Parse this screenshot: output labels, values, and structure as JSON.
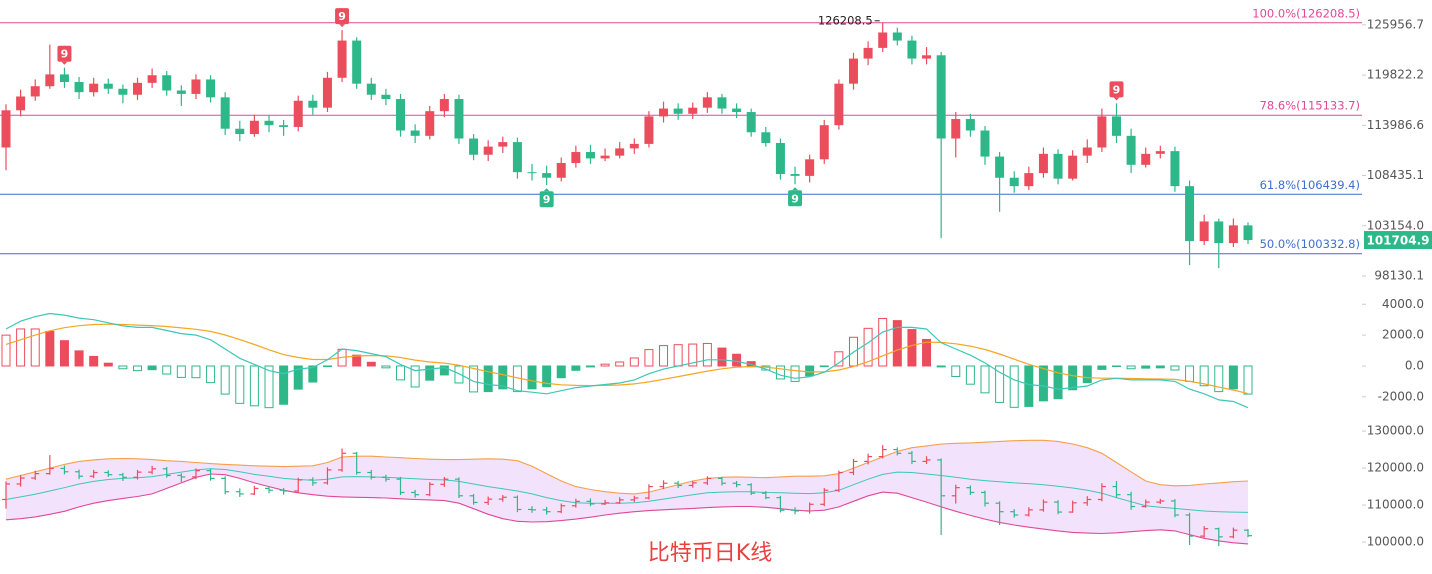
{
  "chart_data": [
    {
      "type": "candlestick",
      "log_scale": true,
      "up_color": "#eb4d5c",
      "down_color": "#2eb88a",
      "ylim": [
        96300,
        129100
      ],
      "yticks": [
        125956.7,
        119822.2,
        113986.6,
        108435.1,
        {
          "value": 103154,
          "label": "103154.0"
        },
        98130.1
      ],
      "open": [
        111500,
        115700,
        117300,
        118500,
        119900,
        119000,
        117800,
        118800,
        118200,
        117500,
        118900,
        119800,
        118000,
        117600,
        119300,
        117200,
        113600,
        113000,
        114500,
        114000,
        113800,
        116800,
        116000,
        119500,
        124000,
        118800,
        117500,
        117000,
        113400,
        112800,
        115600,
        117000,
        112500,
        110700,
        111600,
        112100,
        108800,
        108700,
        108200,
        109800,
        111000,
        110300,
        110600,
        111400,
        111900,
        115000,
        115900,
        115300,
        116000,
        117200,
        115900,
        115500,
        113200,
        112000,
        108600,
        108400,
        110200,
        114000,
        118800,
        121800,
        123100,
        125000,
        124000,
        121800,
        122200,
        112500,
        114700,
        113400,
        110500,
        108200,
        107300,
        108700,
        110800,
        108100,
        110600,
        111500,
        115000,
        112800,
        109600,
        110800,
        111100,
        107300,
        101600,
        103600,
        101400,
        103200
      ],
      "high": [
        116400,
        118100,
        119300,
        123500,
        120700,
        119600,
        119500,
        119400,
        118700,
        119500,
        120600,
        120300,
        118600,
        119900,
        119800,
        117800,
        114500,
        115200,
        115100,
        114600,
        117400,
        117500,
        120200,
        125300,
        124400,
        119500,
        118200,
        117600,
        114100,
        116200,
        117600,
        117500,
        113000,
        112300,
        112700,
        112600,
        109700,
        109500,
        110400,
        111700,
        111800,
        111400,
        112100,
        112500,
        115600,
        116700,
        116500,
        116600,
        117800,
        117600,
        116500,
        115900,
        113800,
        112500,
        109400,
        110700,
        114600,
        119300,
        122500,
        123900,
        126208.5,
        125600,
        124600,
        123200,
        122600,
        115500,
        115300,
        113900,
        111000,
        108900,
        109400,
        111500,
        111300,
        111200,
        112400,
        115900,
        116500,
        113600,
        111500,
        111700,
        111600,
        107900,
        104300,
        103900,
        103900,
        103500
      ],
      "low": [
        109000,
        115000,
        116800,
        118200,
        118300,
        117000,
        117300,
        117600,
        116500,
        116900,
        118300,
        117400,
        116200,
        117000,
        116600,
        112900,
        112200,
        112700,
        113200,
        112800,
        113300,
        115200,
        115500,
        119000,
        118200,
        116900,
        116300,
        112700,
        112000,
        112400,
        114900,
        111900,
        110100,
        110000,
        110900,
        108100,
        107900,
        107400,
        107800,
        109300,
        109700,
        110000,
        110300,
        110800,
        111500,
        114300,
        114600,
        114700,
        115400,
        115300,
        114800,
        112700,
        111600,
        108000,
        107500,
        107700,
        109700,
        113500,
        118100,
        121000,
        122600,
        123400,
        121100,
        121100,
        101900,
        110400,
        112700,
        109600,
        104600,
        106600,
        106900,
        108200,
        107500,
        107900,
        109800,
        111000,
        112000,
        108700,
        109300,
        110300,
        106700,
        99200,
        101200,
        98900,
        101000,
        101300
      ],
      "close": [
        115700,
        117300,
        118500,
        119900,
        119000,
        117800,
        118800,
        118200,
        117500,
        118900,
        119800,
        118000,
        117600,
        119300,
        117200,
        113600,
        113000,
        114500,
        114000,
        113800,
        116800,
        116000,
        119500,
        124000,
        118800,
        117500,
        117000,
        113400,
        112800,
        115600,
        117000,
        112500,
        110700,
        111600,
        112100,
        108800,
        108700,
        108200,
        109800,
        111000,
        110300,
        110600,
        111400,
        111900,
        115000,
        115900,
        115300,
        116000,
        117200,
        115900,
        115500,
        113200,
        112000,
        108600,
        108400,
        110200,
        114000,
        118800,
        121800,
        123100,
        125000,
        124000,
        121800,
        122200,
        112500,
        114700,
        113400,
        110500,
        108200,
        107300,
        108700,
        110800,
        108100,
        110600,
        111500,
        115000,
        112800,
        109600,
        110800,
        111100,
        107300,
        101600,
        103600,
        101400,
        103200,
        101704.9
      ],
      "fib_levels": [
        {
          "label": "100.0%(126208.5)",
          "value": 126208.5,
          "color": "#e0489a"
        },
        {
          "label": "78.6%(115133.7)",
          "value": 115133.7,
          "color": "#e0489a"
        },
        {
          "label": "61.8%(106439.4)",
          "value": 106439.4,
          "color": "#3f6fd0"
        },
        {
          "label": "50.0%(100332.8)",
          "value": 100332.8,
          "color": "#3f6fd0"
        }
      ],
      "last_price": 101704.9,
      "high_annotation": 126208.5,
      "td_marks": [
        {
          "index": 4,
          "text": "9",
          "side": "top"
        },
        {
          "index": 23,
          "text": "9",
          "side": "top"
        },
        {
          "index": 76,
          "text": "9",
          "side": "top"
        },
        {
          "index": 37,
          "text": "9",
          "side": "bottom"
        },
        {
          "index": 54,
          "text": "9",
          "side": "bottom"
        }
      ]
    },
    {
      "type": "macd",
      "ylim": [
        -3500,
        4600
      ],
      "up_color": "#eb4d5c",
      "down_color": "#2eb88a",
      "dif_color": "#3cc7b8",
      "dea_color": "#f5a623",
      "yticks": [
        {
          "value": 4000,
          "label": "4000.0"
        },
        {
          "value": 2000,
          "label": "2000.0"
        },
        {
          "value": 0,
          "label": "0.0"
        },
        {
          "value": -2000,
          "label": "-2000.0"
        }
      ],
      "dif": [
        2400,
        2900,
        3200,
        3400,
        3300,
        3100,
        3000,
        2800,
        2600,
        2500,
        2500,
        2300,
        2100,
        2000,
        1700,
        1100,
        500,
        100,
        -300,
        -500,
        -200,
        -100,
        400,
        1100,
        1000,
        800,
        600,
        100,
        -300,
        -200,
        -100,
        -500,
        -1000,
        -1200,
        -1300,
        -1600,
        -1700,
        -1800,
        -1600,
        -1400,
        -1300,
        -1200,
        -1100,
        -900,
        -500,
        -200,
        0,
        200,
        400,
        400,
        300,
        100,
        -200,
        -600,
        -800,
        -700,
        -400,
        200,
        900,
        1500,
        2200,
        2500,
        2500,
        2400,
        1500,
        1100,
        700,
        200,
        -400,
        -900,
        -1200,
        -1300,
        -1500,
        -1400,
        -1300,
        -900,
        -800,
        -900,
        -900,
        -900,
        -1000,
        -1500,
        -1800,
        -2200,
        -2300,
        -2700
      ],
      "dea": [
        1400,
        1700,
        2000,
        2280,
        2480,
        2610,
        2690,
        2710,
        2690,
        2650,
        2620,
        2560,
        2470,
        2380,
        2240,
        2010,
        1710,
        1390,
        1050,
        740,
        550,
        420,
        420,
        560,
        650,
        680,
        660,
        550,
        380,
        260,
        190,
        50,
        -160,
        -370,
        -560,
        -770,
        -960,
        -1130,
        -1220,
        -1260,
        -1270,
        -1260,
        -1230,
        -1160,
        -1030,
        -860,
        -690,
        -510,
        -330,
        -180,
        -80,
        -40,
        -70,
        -180,
        -300,
        -380,
        -380,
        -260,
        -30,
        280,
        660,
        1030,
        1320,
        1540,
        1530,
        1440,
        1290,
        1070,
        780,
        440,
        110,
        -170,
        -440,
        -630,
        -760,
        -790,
        -790,
        -810,
        -830,
        -840,
        -870,
        -1000,
        -1160,
        -1370,
        -1560,
        -1790
      ],
      "hist": [
        2000,
        2400,
        2400,
        2240,
        1640,
        980,
        620,
        180,
        -180,
        -300,
        -240,
        -520,
        -740,
        -760,
        -1080,
        -1820,
        -2420,
        -2580,
        -2700,
        -2480,
        -1500,
        -1040,
        -40,
        1080,
        700,
        240,
        -120,
        -900,
        -1360,
        -920,
        -580,
        -1100,
        -1680,
        -1660,
        -1480,
        -1660,
        -1480,
        -1340,
        -760,
        -280,
        -60,
        120,
        260,
        520,
        1060,
        1320,
        1380,
        1420,
        1460,
        1160,
        760,
        280,
        -260,
        -840,
        -1000,
        -640,
        -40,
        920,
        1860,
        2440,
        3080,
        2940,
        2360,
        1720,
        -60,
        -680,
        -1180,
        -1740,
        -2360,
        -2680,
        -2620,
        -2260,
        -2120,
        -1540,
        -1080,
        -220,
        -20,
        -180,
        -140,
        -120,
        -260,
        -1000,
        -1280,
        -1660,
        -1480,
        -1820
      ]
    },
    {
      "type": "bollinger",
      "ylim": [
        95000,
        133000
      ],
      "upper_color": "#f5a04a",
      "mid_color": "#3cc7b8",
      "lower_color": "#e0489a",
      "fill_color": "#f3e2fb",
      "yticks": [
        {
          "value": 130000,
          "label": "130000.0"
        },
        {
          "value": 120000,
          "label": "120000.0"
        },
        {
          "value": 110000,
          "label": "110000.0"
        },
        {
          "value": 100000,
          "label": "100000.0"
        }
      ],
      "upper": [
        117000,
        118000,
        119000,
        120000,
        121000,
        121800,
        122200,
        122500,
        122600,
        122500,
        122300,
        122000,
        121800,
        121500,
        121200,
        121000,
        120800,
        120600,
        120500,
        120400,
        120500,
        120600,
        121500,
        123000,
        123200,
        123200,
        123000,
        122800,
        122600,
        122400,
        122300,
        122300,
        122400,
        122500,
        122400,
        122000,
        120500,
        118500,
        116500,
        115000,
        114200,
        113600,
        113200,
        113000,
        113500,
        114500,
        115500,
        116500,
        117200,
        117500,
        117600,
        117500,
        117400,
        117600,
        117800,
        117800,
        117900,
        118500,
        120000,
        121500,
        123000,
        124500,
        125500,
        126000,
        126500,
        126700,
        126800,
        127000,
        127200,
        127400,
        127500,
        127500,
        127200,
        126500,
        125500,
        124000,
        121500,
        119000,
        116500,
        115500,
        115200,
        115300,
        115700,
        116000,
        116300,
        116500
      ],
      "mid": [
        111500,
        112200,
        112900,
        113800,
        114700,
        115700,
        116400,
        116900,
        117200,
        117400,
        117700,
        118300,
        118900,
        119500,
        119800,
        119600,
        119000,
        118300,
        117800,
        117200,
        116900,
        116700,
        117000,
        117600,
        117700,
        117600,
        117500,
        117300,
        117100,
        116900,
        116800,
        116400,
        115700,
        115000,
        114400,
        113800,
        113000,
        112000,
        111200,
        110600,
        110500,
        110500,
        110500,
        110600,
        111000,
        111600,
        112200,
        112800,
        113300,
        113500,
        113600,
        113600,
        113400,
        113300,
        113200,
        113100,
        113300,
        114000,
        115500,
        117000,
        118300,
        118900,
        118800,
        118400,
        118000,
        117500,
        117000,
        116600,
        116300,
        116000,
        115800,
        115500,
        115100,
        114600,
        114000,
        113200,
        112000,
        110900,
        109800,
        109400,
        109100,
        108700,
        108400,
        108200,
        108100,
        108000
      ],
      "lower": [
        106000,
        106300,
        106800,
        107500,
        108300,
        109500,
        110500,
        111200,
        111800,
        112300,
        113000,
        114500,
        116000,
        117500,
        118400,
        118200,
        117200,
        116000,
        115000,
        114000,
        113300,
        112800,
        112400,
        112200,
        112100,
        112000,
        111900,
        111700,
        111500,
        111400,
        111200,
        110500,
        109000,
        107500,
        106300,
        105600,
        105400,
        105500,
        105800,
        106200,
        106700,
        107300,
        107800,
        108200,
        108500,
        108700,
        108900,
        109100,
        109300,
        109500,
        109600,
        109600,
        109400,
        109000,
        108600,
        108400,
        108600,
        109500,
        111000,
        112500,
        113500,
        113200,
        112000,
        110800,
        109500,
        108300,
        107200,
        106200,
        105300,
        104600,
        104000,
        103500,
        103000,
        102600,
        102400,
        102300,
        102500,
        102800,
        103100,
        103300,
        103000,
        102000,
        101000,
        100300,
        99800,
        99500
      ],
      "caption": "比特币日K线"
    }
  ]
}
